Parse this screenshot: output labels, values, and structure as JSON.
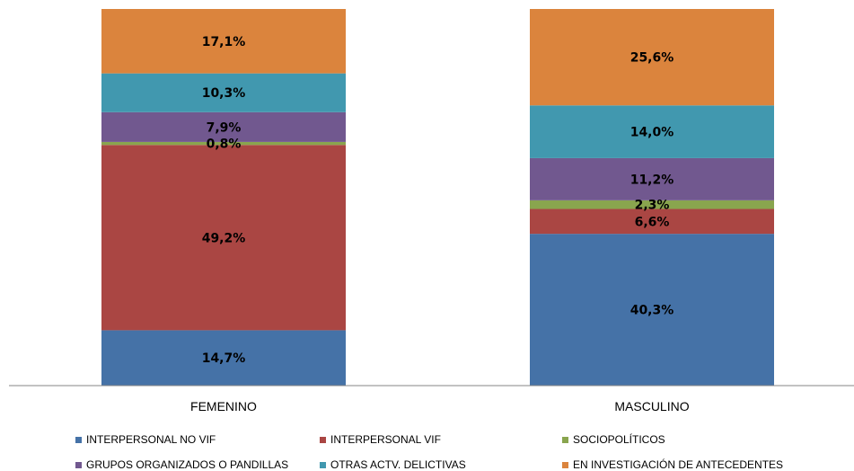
{
  "chart_data": {
    "type": "bar",
    "stacked": true,
    "percent_stacked": true,
    "categories": [
      "FEMENINO",
      "MASCULINO"
    ],
    "series": [
      {
        "name": "INTERPERSONAL NO VIF",
        "color": "#4572a7",
        "values": [
          14.7,
          40.3
        ],
        "labels": [
          "14,7%",
          "40,3%"
        ]
      },
      {
        "name": "INTERPERSONAL VIF",
        "color": "#aa4643",
        "values": [
          49.2,
          6.6
        ],
        "labels": [
          "49,2%",
          "6,6%"
        ]
      },
      {
        "name": "SOCIOPOLÍTICOS",
        "color": "#89a54e",
        "values": [
          0.8,
          2.3
        ],
        "labels": [
          "0,8%",
          "2,3%"
        ]
      },
      {
        "name": "GRUPOS ORGANIZADOS O PANDILLAS",
        "color": "#71588f",
        "values": [
          7.9,
          11.2
        ],
        "labels": [
          "7,9%",
          "11,2%"
        ]
      },
      {
        "name": "OTRAS ACTV. DELICTIVAS",
        "color": "#4198af",
        "values": [
          10.3,
          14.0
        ],
        "labels": [
          "10,3%",
          "14,0%"
        ]
      },
      {
        "name": "EN INVESTIGACIÓN DE ANTECEDENTES",
        "color": "#db843d",
        "values": [
          17.1,
          25.6
        ],
        "labels": [
          "17,1%",
          "25,6%"
        ]
      }
    ],
    "ylim": [
      0,
      100
    ],
    "grid": false,
    "legend": "bottom"
  }
}
